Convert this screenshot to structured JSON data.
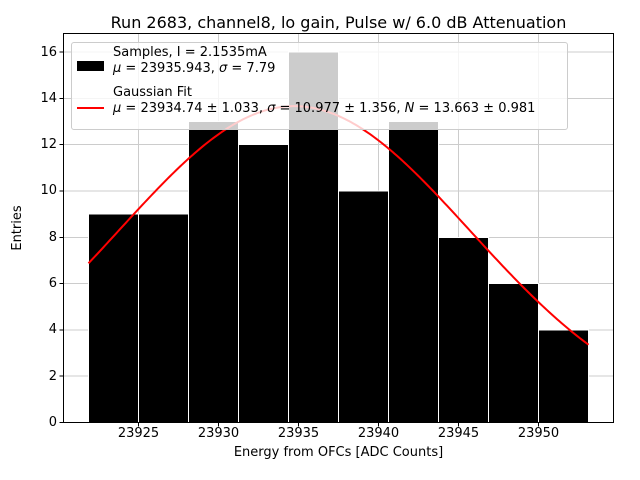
{
  "chart_data": {
    "type": "histogram",
    "title": "Run 2683, channel8, lo gain, Pulse w/ 6.0 dB Attenuation",
    "xlabel": "Energy from OFCs [ADC Counts]",
    "ylabel": "Entries",
    "bin_edges": [
      23921.875,
      23925.0,
      23928.125,
      23931.25,
      23934.375,
      23937.5,
      23940.625,
      23943.75,
      23946.875,
      23950.0,
      23953.125
    ],
    "counts": [
      9,
      9,
      13,
      12,
      16,
      10,
      13,
      8,
      6,
      4
    ],
    "total_entries": 100,
    "xticks": [
      23925,
      23930,
      23935,
      23940,
      23945,
      23950
    ],
    "yticks": [
      0,
      2,
      4,
      6,
      8,
      10,
      12,
      14,
      16
    ],
    "xlim": [
      23920.3125,
      23954.6875
    ],
    "ylim": [
      0,
      16.8
    ],
    "grid": true,
    "legend_position": "upper left",
    "sample_stats": {
      "current": "2.1535mA",
      "mu": 23935.943,
      "sigma": 7.79
    },
    "gaussian_fit": {
      "N": 13.663,
      "N_err": 0.981,
      "mu": 23934.74,
      "mu_err": 1.033,
      "sigma": 10.977,
      "sigma_err": 1.356
    },
    "colors": {
      "bars": "#000000",
      "bar_edge": "#ffffff",
      "fit_line": "#ff0000",
      "grid": "#cccccc",
      "frame": "#000000",
      "legend_edge": "#cccccc"
    }
  },
  "legend": {
    "entries": [
      {
        "line1": "Samples, I = 2.1535mA",
        "line2_segments": [
          {
            "text": "μ",
            "italic": true
          },
          {
            "text": " = 23935.943, ",
            "italic": false
          },
          {
            "text": "σ",
            "italic": true
          },
          {
            "text": " = 7.79",
            "italic": false
          }
        ]
      },
      {
        "line1": "Gaussian Fit",
        "line2_segments": [
          {
            "text": "μ",
            "italic": true
          },
          {
            "text": " = 23934.74 ± 1.033, ",
            "italic": false
          },
          {
            "text": "σ",
            "italic": true
          },
          {
            "text": " = 10.977 ± 1.356, ",
            "italic": false
          },
          {
            "text": "N",
            "italic": true
          },
          {
            "text": " = 13.663 ± 0.981",
            "italic": false
          }
        ]
      }
    ]
  }
}
